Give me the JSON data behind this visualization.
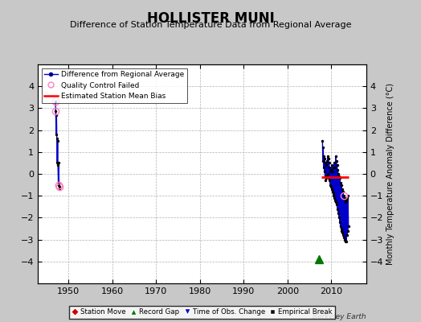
{
  "title": "HOLLISTER MUNI",
  "subtitle": "Difference of Station Temperature Data from Regional Average",
  "ylabel": "Monthly Temperature Anomaly Difference (°C)",
  "xlabel_bottom": "Berkeley Earth",
  "xlim": [
    1943,
    2018
  ],
  "ylim": [
    -5,
    5
  ],
  "yticks": [
    -4,
    -3,
    -2,
    -1,
    0,
    1,
    2,
    3,
    4
  ],
  "xticks": [
    1950,
    1960,
    1970,
    1980,
    1990,
    2000,
    2010
  ],
  "background_color": "#c8c8c8",
  "plot_bg_color": "#ffffff",
  "grid_color": "#aaaaaa",
  "early_data": [
    [
      1947.0,
      3.3
    ],
    [
      1947.08,
      2.85
    ],
    [
      1947.17,
      1.8
    ],
    [
      1947.25,
      2.7
    ],
    [
      1947.33,
      1.6
    ],
    [
      1947.42,
      0.5
    ],
    [
      1947.5,
      1.5
    ],
    [
      1947.58,
      0.4
    ],
    [
      1947.67,
      -0.4
    ],
    [
      1947.75,
      0.5
    ],
    [
      1947.83,
      -0.5
    ],
    [
      1947.92,
      -0.6
    ],
    [
      1948.0,
      -0.65
    ]
  ],
  "qc_failed_early": [
    [
      1947.0,
      3.3
    ],
    [
      1947.08,
      2.85
    ],
    [
      1947.83,
      -0.5
    ],
    [
      1947.92,
      -0.6
    ]
  ],
  "late_data": [
    [
      2008.0,
      1.5
    ],
    [
      2008.08,
      0.6
    ],
    [
      2008.17,
      1.2
    ],
    [
      2008.25,
      0.3
    ],
    [
      2008.33,
      0.8
    ],
    [
      2008.42,
      0.1
    ],
    [
      2008.5,
      0.7
    ],
    [
      2008.58,
      -0.1
    ],
    [
      2008.67,
      0.5
    ],
    [
      2008.75,
      -0.3
    ],
    [
      2008.83,
      0.4
    ],
    [
      2008.92,
      -0.2
    ],
    [
      2009.0,
      0.6
    ],
    [
      2009.08,
      -0.1
    ],
    [
      2009.17,
      0.8
    ],
    [
      2009.25,
      0.0
    ],
    [
      2009.33,
      0.7
    ],
    [
      2009.42,
      -0.2
    ],
    [
      2009.5,
      0.5
    ],
    [
      2009.58,
      -0.3
    ],
    [
      2009.67,
      0.3
    ],
    [
      2009.75,
      -0.5
    ],
    [
      2009.83,
      0.1
    ],
    [
      2009.92,
      -0.6
    ],
    [
      2010.0,
      0.2
    ],
    [
      2010.08,
      -0.7
    ],
    [
      2010.17,
      0.4
    ],
    [
      2010.25,
      -0.8
    ],
    [
      2010.33,
      0.1
    ],
    [
      2010.42,
      -0.9
    ],
    [
      2010.5,
      0.3
    ],
    [
      2010.58,
      -1.0
    ],
    [
      2010.67,
      0.5
    ],
    [
      2010.75,
      -1.1
    ],
    [
      2010.83,
      0.3
    ],
    [
      2010.92,
      -1.2
    ],
    [
      2011.0,
      0.8
    ],
    [
      2011.08,
      -1.3
    ],
    [
      2011.17,
      0.6
    ],
    [
      2011.25,
      -1.4
    ],
    [
      2011.33,
      0.4
    ],
    [
      2011.42,
      -1.6
    ],
    [
      2011.5,
      0.2
    ],
    [
      2011.58,
      -1.8
    ],
    [
      2011.67,
      0.0
    ],
    [
      2011.75,
      -2.0
    ],
    [
      2011.83,
      -0.1
    ],
    [
      2011.92,
      -2.2
    ],
    [
      2012.0,
      -0.2
    ],
    [
      2012.08,
      -2.4
    ],
    [
      2012.17,
      -0.4
    ],
    [
      2012.25,
      -2.5
    ],
    [
      2012.33,
      -0.5
    ],
    [
      2012.42,
      -2.6
    ],
    [
      2012.5,
      -0.7
    ],
    [
      2012.58,
      -2.7
    ],
    [
      2012.67,
      -0.8
    ],
    [
      2012.75,
      -2.8
    ],
    [
      2012.83,
      -1.0
    ],
    [
      2012.92,
      -2.9
    ],
    [
      2013.0,
      -1.1
    ],
    [
      2013.08,
      -3.0
    ],
    [
      2013.17,
      -1.2
    ],
    [
      2013.25,
      -3.1
    ],
    [
      2013.33,
      -1.3
    ],
    [
      2013.42,
      -3.1
    ],
    [
      2013.5,
      -1.2
    ],
    [
      2013.58,
      -2.8
    ],
    [
      2013.67,
      -1.1
    ],
    [
      2013.75,
      -2.6
    ],
    [
      2013.83,
      -1.0
    ],
    [
      2013.92,
      -2.4
    ]
  ],
  "qc_failed_late": [
    [
      2012.83,
      -1.0
    ]
  ],
  "record_gap_x": 2007.2,
  "record_gap_y": -3.9,
  "bias_line": {
    "x_start": 2007.8,
    "x_end": 2014.0,
    "y": -0.15
  },
  "vertical_line_x": 2007.5,
  "line_color": "#0000cc",
  "dot_color": "#000000",
  "qc_color": "#ff80c0",
  "bias_color": "#ff0000",
  "station_move_color": "#cc0000",
  "record_gap_color": "#007700",
  "time_obs_color": "#0000cc",
  "empirical_break_color": "#111111",
  "title_fontsize": 12,
  "subtitle_fontsize": 8,
  "tick_fontsize": 8,
  "ylabel_fontsize": 7
}
